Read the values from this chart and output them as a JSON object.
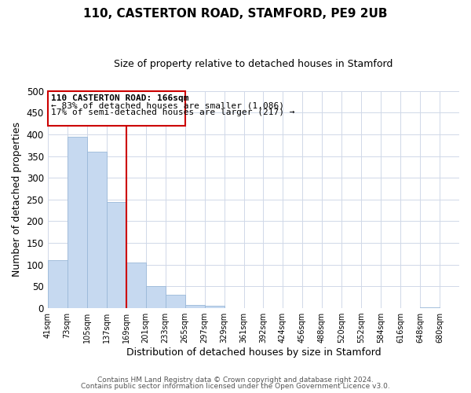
{
  "title": "110, CASTERTON ROAD, STAMFORD, PE9 2UB",
  "subtitle": "Size of property relative to detached houses in Stamford",
  "xlabel": "Distribution of detached houses by size in Stamford",
  "ylabel": "Number of detached properties",
  "footnote1": "Contains HM Land Registry data © Crown copyright and database right 2024.",
  "footnote2": "Contains public sector information licensed under the Open Government Licence v3.0.",
  "bar_edges": [
    41,
    73,
    105,
    137,
    169,
    201,
    233,
    265,
    297,
    329,
    361,
    392,
    424,
    456,
    488,
    520,
    552,
    584,
    616,
    648,
    680
  ],
  "bar_heights": [
    111,
    394,
    360,
    245,
    105,
    50,
    30,
    8,
    5,
    0,
    0,
    0,
    0,
    0,
    0,
    0,
    0,
    0,
    0,
    2
  ],
  "bar_color": "#c6d9f0",
  "bar_edge_color": "#9ab8d8",
  "property_line_x": 169,
  "property_line_color": "#cc0000",
  "annotation_box_edge_color": "#cc0000",
  "annotation_title": "110 CASTERTON ROAD: 166sqm",
  "annotation_line1": "← 83% of detached houses are smaller (1,086)",
  "annotation_line2": "17% of semi-detached houses are larger (217) →",
  "ylim": [
    0,
    500
  ],
  "yticks": [
    0,
    50,
    100,
    150,
    200,
    250,
    300,
    350,
    400,
    450,
    500
  ],
  "x_tick_labels": [
    "41sqm",
    "73sqm",
    "105sqm",
    "137sqm",
    "169sqm",
    "201sqm",
    "233sqm",
    "265sqm",
    "297sqm",
    "329sqm",
    "361sqm",
    "392sqm",
    "424sqm",
    "456sqm",
    "488sqm",
    "520sqm",
    "552sqm",
    "584sqm",
    "616sqm",
    "648sqm",
    "680sqm"
  ],
  "background_color": "#ffffff",
  "grid_color": "#d0d8e8"
}
